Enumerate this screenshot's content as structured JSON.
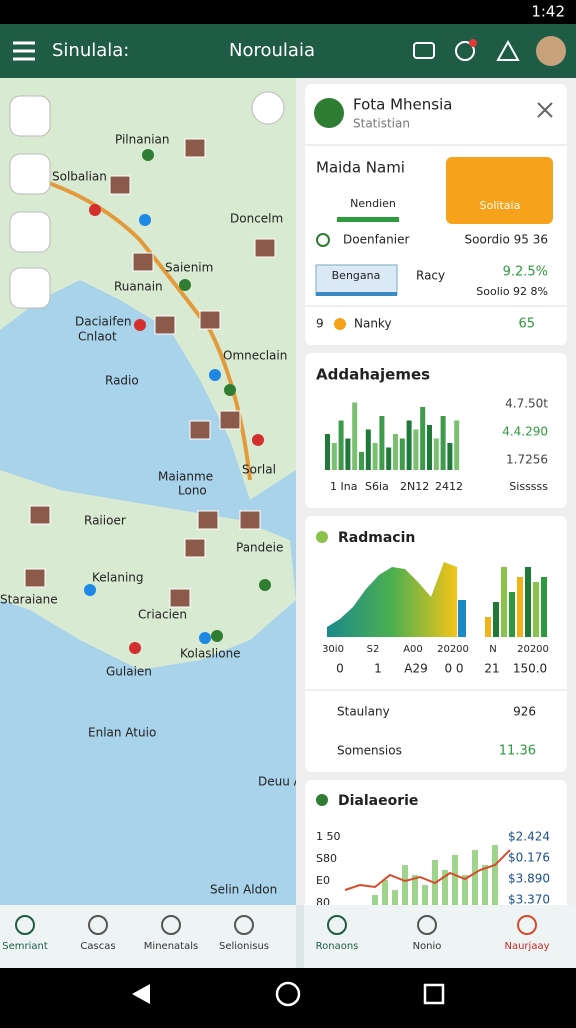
{
  "status_bar": {
    "time": "1:42"
  },
  "app_bar": {
    "left_title": "Sinulala:",
    "center_title": "Noroulaia"
  },
  "map": {
    "labels": [
      "Pilnanian",
      "Solbalian",
      "Doncelm",
      "Saienim",
      "Ruanain",
      "Daciaifen",
      "Cnlaot",
      "Omneclain",
      "Radio",
      "Maianme",
      "Lono",
      "Sorlal",
      "Raiioer",
      "Pandeie",
      "Kelaning",
      "Staraiane",
      "Criacien",
      "Kolaslione",
      "Gulaien",
      "Enlan Atuio",
      "Deuu Aaan",
      "Selin Aldon"
    ]
  },
  "summary_card": {
    "title": "Fota Mhensia",
    "subtitle": "Statistian",
    "heading": "Maida Nami",
    "button": "Solitaia",
    "tab": "Nendien",
    "row1_left": "Doenfanier",
    "row1_right": "Soordio 95 36",
    "row2_box": "Bengana",
    "row2_mid": "Racy",
    "row2_value": "9.2.5%",
    "row2_sub": "Soolio 92 8%",
    "row3_num": "9",
    "row3_label": "Nanky",
    "row3_value": "65"
  },
  "bars_card": {
    "title": "Addahajemes",
    "bars": [
      40,
      30,
      55,
      35,
      75,
      20,
      45,
      30,
      60,
      25,
      40,
      35,
      55,
      45,
      70,
      50,
      35,
      60,
      30,
      55
    ],
    "right_labels": [
      "4.7.50t",
      "4.4.290",
      "1.7256"
    ],
    "x_labels": [
      "1 Ina",
      "S6ia",
      "2N12",
      "2412"
    ],
    "legend": "Sisssss"
  },
  "radar_card": {
    "title": "Radmacin",
    "area": [
      10,
      18,
      30,
      48,
      62,
      70,
      68,
      55,
      40,
      75,
      70
    ],
    "bars": [
      20,
      35,
      70,
      45,
      60,
      70,
      55,
      60
    ],
    "row_a": [
      "30i0",
      "S2",
      "A00",
      "20200",
      "N",
      "20200"
    ],
    "row_b": [
      "0",
      "1",
      "A29",
      "0 0",
      "21",
      "150.0"
    ],
    "item1": "Staulany",
    "item1_value": "926",
    "item2": "Somensios",
    "item2_value": "11.36"
  },
  "line_card": {
    "title": "Dialaeorie",
    "y_labels": [
      "1 50",
      "S80",
      "E0",
      "80"
    ],
    "right_values": [
      "$2.424",
      "$0.176",
      "$3.890",
      "$3.370"
    ],
    "bars": [
      10,
      25,
      15,
      40,
      30,
      20,
      45,
      35,
      50,
      30,
      55,
      40,
      60
    ],
    "line": [
      5,
      10,
      8,
      20,
      14,
      18,
      12,
      22,
      16,
      25,
      30,
      45
    ]
  },
  "nav_left": [
    "Semriant",
    "Cascas",
    "Minenatals",
    "Selionisus"
  ],
  "nav_right": [
    "Ronaons",
    "Nonio",
    "Naurjaay"
  ]
}
